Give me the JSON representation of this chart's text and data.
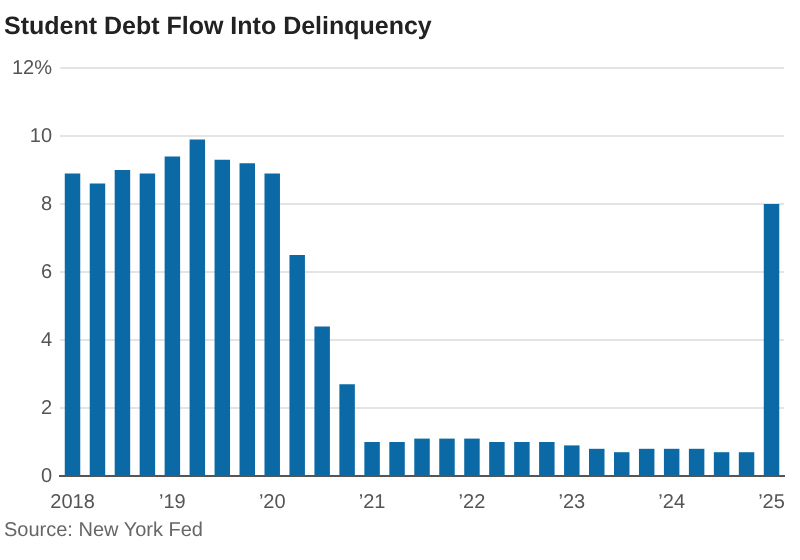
{
  "chart_data": {
    "type": "bar",
    "title": "Student Debt Flow Into Delinquency",
    "categories": [
      "2018",
      null,
      null,
      null,
      "’19",
      null,
      null,
      null,
      "’20",
      null,
      null,
      null,
      "’21",
      null,
      null,
      null,
      "’22",
      null,
      null,
      null,
      "’23",
      null,
      null,
      null,
      "’24",
      null,
      null,
      null,
      "’25"
    ],
    "values": [
      8.9,
      8.6,
      9.0,
      8.9,
      9.4,
      9.9,
      9.3,
      9.2,
      8.9,
      6.5,
      4.4,
      2.7,
      1.0,
      1.0,
      1.1,
      1.1,
      1.1,
      1.0,
      1.0,
      1.0,
      0.9,
      0.8,
      0.7,
      0.8,
      0.8,
      0.8,
      0.7,
      0.7,
      8.0
    ],
    "color": "#0b6aa5",
    "ylim": [
      0,
      12
    ],
    "yticks": [
      0,
      2,
      4,
      6,
      8,
      10,
      {
        "value": 12,
        "label": "12%"
      }
    ],
    "grid": "y",
    "annotations": [
      "Source: New York Fed"
    ]
  }
}
